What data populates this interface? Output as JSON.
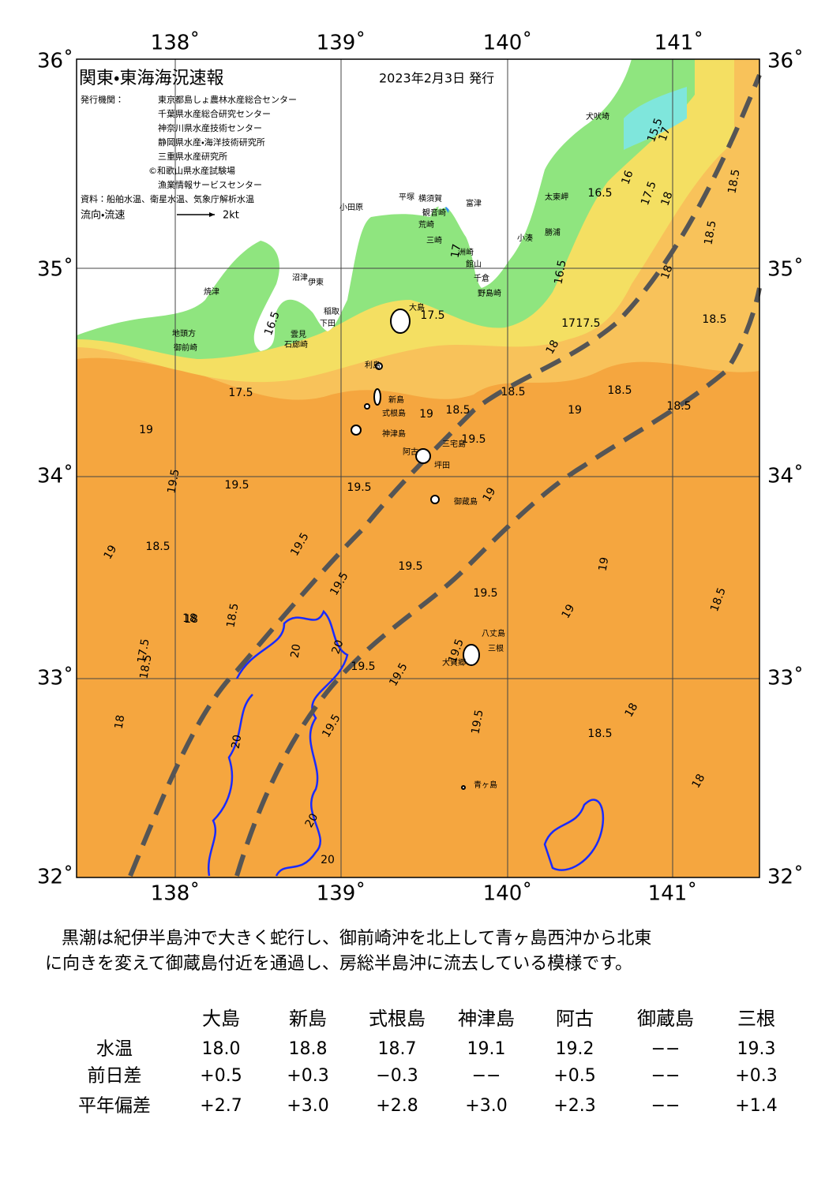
{
  "header": {
    "title": "関東・東海海況速報",
    "date": "2023年2月3日 発行",
    "issuer_label": "発行機関：",
    "issuers": [
      "東京都島しょ農林水産総合センター",
      "千葉県水産総合研究センター",
      "神奈川県水産技術センター",
      "静岡県水産・海洋技術研究所",
      "三重県水産研究所",
      "©和歌山県水産試験場",
      "漁業情報サービスセンター"
    ],
    "source": "資料：船舶水温、衛星水温、気象庁解析水温",
    "flow_label": "流向・流速",
    "flow_scale": "2kt"
  },
  "map": {
    "lon_labels": [
      "138˚",
      "139˚",
      "140˚",
      "141˚"
    ],
    "lat_labels": [
      "36˚",
      "35˚",
      "34˚",
      "33˚",
      "32˚"
    ],
    "places": [
      "小田原",
      "平塚",
      "横須賀",
      "観音崎",
      "荒崎",
      "三崎",
      "富津",
      "館山",
      "千倉",
      "野島崎",
      "洲崎",
      "太東岬",
      "勝浦",
      "小湊",
      "犬吠埼",
      "沼津",
      "伊東",
      "稲取",
      "下田",
      "石廊崎",
      "雲見",
      "焼津",
      "御前崎",
      "地頭方",
      "大島",
      "利島",
      "新島",
      "式根島",
      "神津島",
      "三宅島",
      "阿古",
      "坪田",
      "御蔵島",
      "八丈島",
      "三根",
      "大賀郷",
      "青ヶ島"
    ],
    "contour_labels": [
      "15.5",
      "16",
      "16.5",
      "17.5",
      "18",
      "18.5",
      "16.5",
      "17",
      "17.5",
      "16.5",
      "17",
      "17.5",
      "18",
      "18.5",
      "17",
      "18",
      "18.5",
      "17.5",
      "19",
      "18.5",
      "19",
      "19.5",
      "18.5",
      "18.5",
      "19",
      "18.5",
      "19",
      "19.5",
      "19.5",
      "19.5",
      "19.5",
      "18.5",
      "19",
      "18",
      "18.5",
      "19.5",
      "19.5",
      "19.5",
      "19",
      "19",
      "19.5",
      "18.5",
      "18",
      "19.5",
      "20",
      "20",
      "20",
      "19.5",
      "19.5",
      "19.5",
      "18.5",
      "18",
      "17.5",
      "20",
      "20",
      "18",
      "18.5",
      "18"
    ]
  },
  "summary": [
    "黒潮は紀伊半島沖で大きく蛇行し、御前崎沖を北上して青ヶ島西沖から北東",
    "に向きを変えて御蔵島付近を通過し、房総半島沖に流去している模様です。"
  ],
  "table": {
    "columns": [
      "大島",
      "新島",
      "式根島",
      "神津島",
      "阿古",
      "御蔵島",
      "三根"
    ],
    "rows": [
      {
        "label": "水温",
        "cells": [
          "18.0",
          "18.8",
          "18.7",
          "19.1",
          "19.2",
          "−−",
          "19.3"
        ]
      },
      {
        "label": "前日差",
        "cells": [
          "+0.5",
          "+0.3",
          "−0.3",
          "−−",
          "+0.5",
          "−−",
          "+0.3"
        ]
      },
      {
        "label": "平年偏差",
        "cells": [
          "+2.7",
          "+3.0",
          "+2.8",
          "+3.0",
          "+2.3",
          "−−",
          "+1.4"
        ]
      }
    ]
  }
}
